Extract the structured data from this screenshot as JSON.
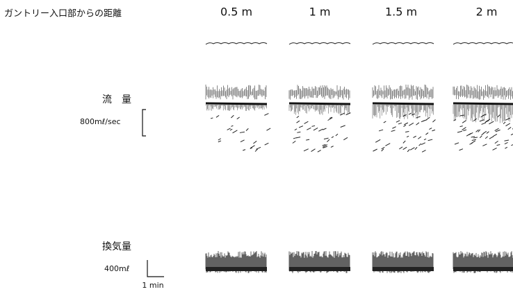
{
  "header": {
    "label": "ガントリー入口部からの距離",
    "columns": [
      "0.5 m",
      "1 m",
      "1.5 m",
      "2 m"
    ]
  },
  "rows": [
    {
      "label": "流　量",
      "scale": "800mℓ/sec"
    },
    {
      "label": "換気量",
      "scale": "400mℓ",
      "time_scale": "1 min"
    }
  ]
}
